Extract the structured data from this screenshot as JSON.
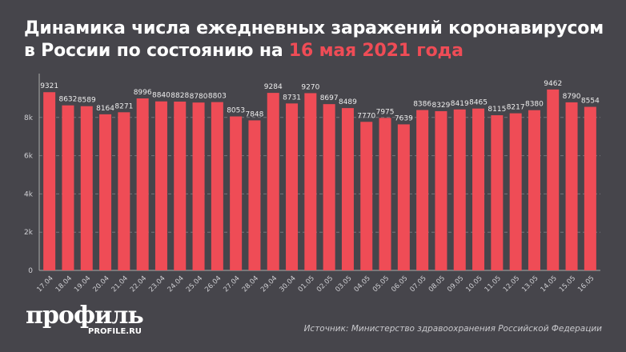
{
  "title": {
    "line1": "Динамика числа ежедневных заражений коронавирусом",
    "line2_prefix": "в России по состоянию на ",
    "line2_highlight": "16 мая 2021 года"
  },
  "colors": {
    "background": "#46454b",
    "bar": "#ef4c56",
    "highlight": "#ef4c56"
  },
  "chart_data": {
    "type": "bar",
    "categories": [
      "17.04",
      "18.04",
      "19.04",
      "20.04",
      "21.04",
      "22.04",
      "23.04",
      "24.04",
      "25.04",
      "26.04",
      "27.04",
      "28.04",
      "29.04",
      "30.04",
      "01.05",
      "02.05",
      "03.05",
      "04.05",
      "05.05",
      "06.05",
      "07.05",
      "08.05",
      "09.05",
      "10.05",
      "11.05",
      "12.05",
      "13.05",
      "14.05",
      "15.05",
      "16.05"
    ],
    "values": [
      9321,
      8632,
      8589,
      8164,
      8271,
      8996,
      8840,
      8828,
      8780,
      8803,
      8053,
      7848,
      9284,
      8731,
      9270,
      8697,
      8489,
      7770,
      7975,
      7639,
      8386,
      8329,
      8419,
      8465,
      8115,
      8217,
      8380,
      9462,
      8790,
      8554
    ],
    "ylim": [
      0,
      10000
    ],
    "yticks": [
      0,
      2000,
      4000,
      6000,
      8000
    ],
    "ytick_labels": [
      "0",
      "2k",
      "4k",
      "6k",
      "8k"
    ],
    "grid": "dashed horizontal at 8k",
    "data_labels": true
  },
  "logo": {
    "text": "профиль",
    "sub": "PROFILE.RU"
  },
  "source": "Источник: Министерство здравоохранения Российской Федерации"
}
